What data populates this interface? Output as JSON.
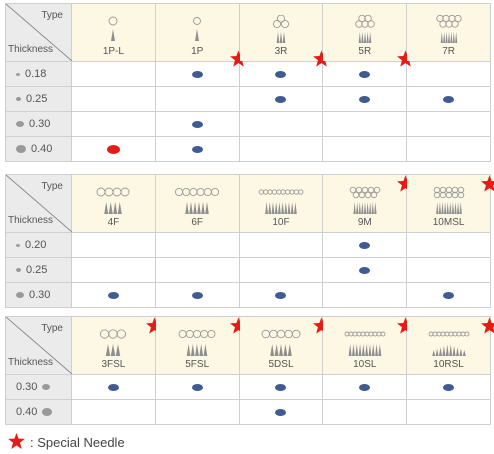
{
  "corner": {
    "type_label": "Type",
    "thickness_label": "Thickness"
  },
  "colors": {
    "dot": "#3e5b92",
    "dot_special": "#e61b17",
    "star": "#e61b17"
  },
  "tables": [
    {
      "columns": [
        {
          "name": "1P-L",
          "icon": "needle-loop-icon",
          "special": false
        },
        {
          "name": "1P",
          "icon": "needle-single-icon",
          "special": true
        },
        {
          "name": "3R",
          "icon": "needle-round-3-icon",
          "special": true
        },
        {
          "name": "5R",
          "icon": "needle-round-5-icon",
          "special": true
        },
        {
          "name": "7R",
          "icon": "needle-round-7-icon",
          "special": false
        }
      ],
      "rows": [
        {
          "thickness": "0.18",
          "marks": [
            null,
            "blue",
            "blue",
            "blue",
            null
          ]
        },
        {
          "thickness": "0.25",
          "marks": [
            null,
            null,
            "blue",
            "blue",
            "blue"
          ]
        },
        {
          "thickness": "0.30",
          "marks": [
            null,
            "blue",
            null,
            null,
            null
          ]
        },
        {
          "thickness": "0.40",
          "marks": [
            "red",
            "blue",
            null,
            null,
            null
          ]
        }
      ]
    },
    {
      "columns": [
        {
          "name": "4F",
          "icon": "needle-flat-4-icon",
          "special": false
        },
        {
          "name": "6F",
          "icon": "needle-flat-6-icon",
          "special": false
        },
        {
          "name": "10F",
          "icon": "needle-flat-10-icon",
          "special": false
        },
        {
          "name": "9M",
          "icon": "needle-magnum-9-icon",
          "special": true
        },
        {
          "name": "10MSL",
          "icon": "needle-magnum-10-icon",
          "special": true
        }
      ],
      "rows": [
        {
          "thickness": "0.20",
          "marks": [
            null,
            null,
            null,
            "blue",
            null
          ]
        },
        {
          "thickness": "0.25",
          "marks": [
            null,
            null,
            null,
            "blue",
            null
          ]
        },
        {
          "thickness": "0.30",
          "marks": [
            "blue",
            "blue",
            "blue",
            null,
            "blue"
          ]
        }
      ]
    },
    {
      "columns": [
        {
          "name": "3FSL",
          "icon": "needle-flat-3-icon",
          "special": true
        },
        {
          "name": "5FSL",
          "icon": "needle-flat-5-icon",
          "special": true
        },
        {
          "name": "5DSL",
          "icon": "needle-double-5-icon",
          "special": true
        },
        {
          "name": "10SL",
          "icon": "needle-stacked-10-icon",
          "special": true
        },
        {
          "name": "10RSL",
          "icon": "needle-round-10-icon",
          "special": true
        }
      ],
      "rows": [
        {
          "thickness": "0.30",
          "marks": [
            "blue",
            "blue",
            "blue",
            "blue",
            "blue"
          ]
        },
        {
          "thickness": "0.40",
          "marks": [
            null,
            null,
            "blue",
            null,
            null
          ]
        }
      ]
    }
  ],
  "legend": {
    "text": ": Special Needle",
    "icon": "star-icon"
  }
}
